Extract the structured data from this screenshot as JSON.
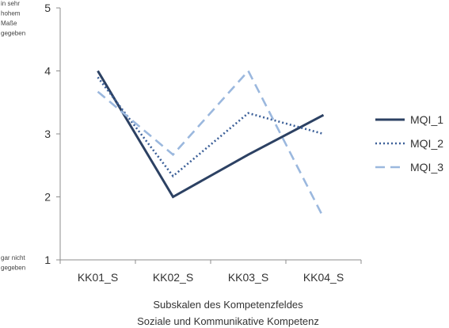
{
  "chart_data": {
    "type": "line",
    "title": "",
    "categories": [
      "KK01_S",
      "KK02_S",
      "KK03_S",
      "KK04_S"
    ],
    "ylim": [
      1,
      5
    ],
    "yticks": [
      1,
      2,
      3,
      4,
      5
    ],
    "grid": false,
    "legend_position": "right",
    "y_top_annotation": [
      "in sehr",
      "hohem",
      "Maße",
      "gegeben"
    ],
    "y_bottom_annotation": [
      "gar nicht",
      "gegeben"
    ],
    "xlabel": [
      "Subskalen des Kompetenzfeldes",
      "Soziale und Kommunikative Kompetenz"
    ],
    "ylabel": "",
    "series": [
      {
        "name": "MQI_1",
        "values": [
          4.0,
          2.0,
          2.67,
          3.3
        ],
        "color": "#2c4163",
        "style": "solid"
      },
      {
        "name": "MQI_2",
        "values": [
          3.9,
          2.33,
          3.33,
          3.0
        ],
        "color": "#3b5f98",
        "style": "dotted"
      },
      {
        "name": "MQI_3",
        "values": [
          3.67,
          2.67,
          4.0,
          1.67
        ],
        "color": "#9bb8de",
        "style": "dashed"
      }
    ]
  }
}
